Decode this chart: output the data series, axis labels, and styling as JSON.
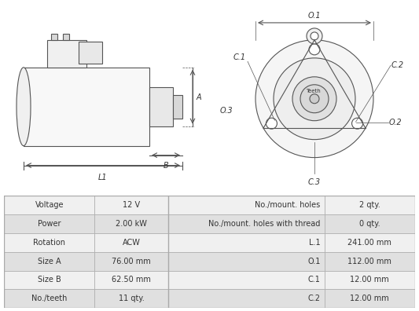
{
  "table_data": {
    "left_col": [
      [
        "Voltage",
        "12 V"
      ],
      [
        "Power",
        "2.00 kW"
      ],
      [
        "Rotation",
        "ACW"
      ],
      [
        "Size A",
        "76.00 mm"
      ],
      [
        "Size B",
        "62.50 mm"
      ],
      [
        "No./teeth",
        "11 qty."
      ]
    ],
    "right_col": [
      [
        "No./mount. holes",
        "2 qty."
      ],
      [
        "No./mount. holes with thread",
        "0 qty."
      ],
      [
        "L.1",
        "241.00 mm"
      ],
      [
        "O.1",
        "112.00 mm"
      ],
      [
        "C.1",
        "12.00 mm"
      ],
      [
        "C.2",
        "12.00 mm"
      ]
    ]
  },
  "bg_color": "#ffffff",
  "table_bg_light": "#f0f0f0",
  "table_bg_dark": "#e0e0e0",
  "table_border": "#aaaaaa",
  "table_text_color": "#333333",
  "diagram_line_color": "#555555",
  "diagram_bg": "#ffffff"
}
